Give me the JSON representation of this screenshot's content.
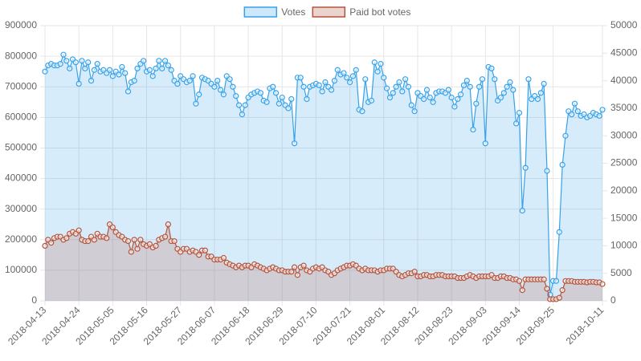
{
  "chart_data": {
    "type": "line",
    "categories": [
      "2018-04-13",
      null,
      null,
      null,
      null,
      null,
      null,
      null,
      null,
      null,
      null,
      "2018-04-24",
      null,
      null,
      null,
      null,
      null,
      null,
      null,
      null,
      null,
      null,
      "2018-05-05",
      null,
      null,
      null,
      null,
      null,
      null,
      null,
      null,
      null,
      null,
      "2018-05-16",
      null,
      null,
      null,
      null,
      null,
      null,
      null,
      null,
      null,
      null,
      "2018-05-27",
      null,
      null,
      null,
      null,
      null,
      null,
      null,
      null,
      null,
      null,
      "2018-06-07",
      null,
      null,
      null,
      null,
      null,
      null,
      null,
      null,
      null,
      null,
      "2018-06-18",
      null,
      null,
      null,
      null,
      null,
      null,
      null,
      null,
      null,
      null,
      "2018-06-29",
      null,
      null,
      null,
      null,
      null,
      null,
      null,
      null,
      null,
      null,
      "2018-07-10",
      null,
      null,
      null,
      null,
      null,
      null,
      null,
      null,
      null,
      null,
      "2018-07-21",
      null,
      null,
      null,
      null,
      null,
      null,
      null,
      null,
      null,
      null,
      "2018-08-01",
      null,
      null,
      null,
      null,
      null,
      null,
      null,
      null,
      null,
      null,
      "2018-08-12",
      null,
      null,
      null,
      null,
      null,
      null,
      null,
      null,
      null,
      null,
      "2018-08-23",
      null,
      null,
      null,
      null,
      null,
      null,
      null,
      null,
      null,
      null,
      "2018-09-03",
      null,
      null,
      null,
      null,
      null,
      null,
      null,
      null,
      null,
      null,
      "2018-09-14",
      null,
      null,
      null,
      null,
      null,
      null,
      null,
      null,
      null,
      null,
      "2018-09-25",
      null,
      null,
      null,
      null,
      null,
      null,
      null,
      null,
      null,
      null,
      null,
      null,
      null,
      null,
      null,
      "2018-10-11"
    ],
    "series": [
      {
        "name": "Votes",
        "color": "#36a2eb",
        "axis": "y",
        "values": [
          750000,
          770000,
          775000,
          770000,
          770000,
          775000,
          805000,
          785000,
          760000,
          790000,
          780000,
          710000,
          785000,
          760000,
          780000,
          720000,
          755000,
          775000,
          750000,
          755000,
          745000,
          755000,
          735000,
          750000,
          740000,
          765000,
          745000,
          685000,
          715000,
          720000,
          760000,
          775000,
          785000,
          750000,
          755000,
          735000,
          760000,
          785000,
          760000,
          785000,
          770000,
          755000,
          720000,
          710000,
          735000,
          725000,
          715000,
          720000,
          735000,
          645000,
          675000,
          730000,
          725000,
          720000,
          710000,
          700000,
          720000,
          690000,
          675000,
          735000,
          725000,
          700000,
          670000,
          640000,
          610000,
          640000,
          665000,
          675000,
          680000,
          685000,
          680000,
          655000,
          650000,
          695000,
          700000,
          680000,
          645000,
          665000,
          640000,
          630000,
          660000,
          515000,
          730000,
          730000,
          700000,
          660000,
          700000,
          705000,
          710000,
          705000,
          685000,
          715000,
          700000,
          690000,
          720000,
          755000,
          740000,
          745000,
          730000,
          715000,
          735000,
          755000,
          625000,
          620000,
          725000,
          650000,
          655000,
          780000,
          750000,
          775000,
          730000,
          695000,
          665000,
          680000,
          700000,
          715000,
          685000,
          725000,
          700000,
          640000,
          620000,
          680000,
          670000,
          660000,
          690000,
          665000,
          650000,
          680000,
          685000,
          685000,
          680000,
          690000,
          665000,
          635000,
          660000,
          675000,
          705000,
          720000,
          700000,
          560000,
          645000,
          700000,
          725000,
          515000,
          765000,
          760000,
          725000,
          655000,
          665000,
          680000,
          700000,
          715000,
          690000,
          580000,
          615000,
          295000,
          435000,
          725000,
          660000,
          670000,
          660000,
          680000,
          710000,
          425000,
          20000,
          65000,
          65000,
          225000,
          445000,
          540000,
          620000,
          610000,
          645000,
          620000,
          605000,
          610000,
          600000,
          605000,
          615000,
          610000,
          605000,
          625000
        ]
      },
      {
        "name": "Paid bot votes",
        "color": "#b5533c",
        "axis": "y2",
        "values": [
          10000,
          11100,
          10550,
          11400,
          11650,
          11650,
          11100,
          11400,
          12200,
          12500,
          12200,
          12800,
          11100,
          10850,
          10850,
          11650,
          11100,
          12200,
          11650,
          11650,
          11400,
          13900,
          13350,
          12500,
          11950,
          11650,
          11100,
          10850,
          8900,
          11100,
          9450,
          11100,
          10300,
          10000,
          10300,
          9700,
          10000,
          11100,
          11400,
          11650,
          13900,
          10850,
          10850,
          9450,
          8900,
          9450,
          9450,
          8900,
          9150,
          8900,
          8350,
          9150,
          9150,
          8050,
          8050,
          7500,
          7500,
          7500,
          7800,
          6950,
          6650,
          6400,
          6100,
          6400,
          6100,
          6400,
          6400,
          6100,
          6650,
          6400,
          6100,
          5850,
          5550,
          5850,
          6100,
          5850,
          5550,
          5550,
          5300,
          5300,
          5300,
          6100,
          4700,
          6100,
          6400,
          5550,
          5300,
          5850,
          6100,
          5850,
          6100,
          5550,
          5300,
          4700,
          5000,
          5550,
          5850,
          6100,
          6400,
          6400,
          6650,
          6400,
          5850,
          5550,
          5850,
          5550,
          5550,
          5550,
          5300,
          5550,
          5550,
          5850,
          5850,
          5850,
          5300,
          4700,
          4450,
          4700,
          5000,
          5000,
          5300,
          4450,
          4450,
          4700,
          4700,
          4450,
          4450,
          4700,
          4700,
          4700,
          4450,
          4450,
          4450,
          4450,
          4150,
          4150,
          4150,
          4450,
          4700,
          4450,
          4150,
          4450,
          4450,
          4450,
          4450,
          4700,
          4150,
          4150,
          4450,
          4450,
          4150,
          4150,
          3900,
          3900,
          3600,
          1950,
          3900,
          3900,
          3900,
          3900,
          3900,
          3900,
          3900,
          2200,
          300,
          300,
          300,
          550,
          1950,
          3600,
          3600,
          3600,
          3450,
          3450,
          3450,
          3450,
          3350,
          3450,
          3450,
          3350,
          3350,
          3050
        ]
      }
    ],
    "ylim": [
      0,
      900000
    ],
    "yticks": [
      0,
      100000,
      200000,
      300000,
      400000,
      500000,
      600000,
      700000,
      800000,
      900000
    ],
    "y2lim": [
      0,
      50000
    ],
    "y2ticks": [
      0,
      5000,
      10000,
      15000,
      20000,
      25000,
      30000,
      35000,
      40000,
      45000,
      50000
    ],
    "grid": true,
    "legend": "top"
  }
}
